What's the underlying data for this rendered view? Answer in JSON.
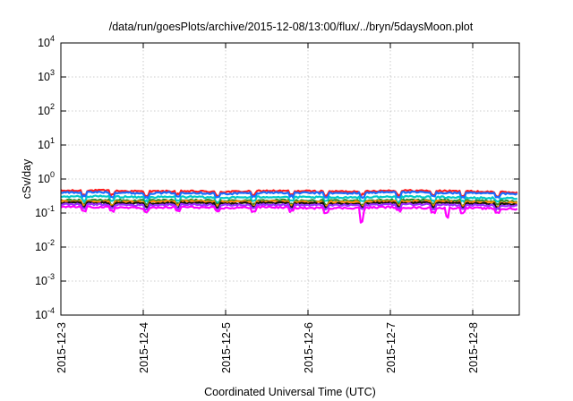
{
  "chart_data": {
    "type": "line",
    "title": "/data/run/goesPlots/archive/2015-12-08/13:00/flux/../bryn/5daysMoon.plot",
    "xlabel": "Coordinated Universal Time (UTC)",
    "ylabel": "cSv/day",
    "yscale": "log",
    "ylim": [
      0.0001,
      10000
    ],
    "xlim": [
      "2015-12-03",
      "2015-12-08 13:00"
    ],
    "y_ticks": [
      {
        "base": "10",
        "exp": "-4"
      },
      {
        "base": "10",
        "exp": "-3"
      },
      {
        "base": "10",
        "exp": "-2"
      },
      {
        "base": "10",
        "exp": "-1"
      },
      {
        "base": "10",
        "exp": "0"
      },
      {
        "base": "10",
        "exp": "1"
      },
      {
        "base": "10",
        "exp": "2"
      },
      {
        "base": "10",
        "exp": "3"
      },
      {
        "base": "10",
        "exp": "4"
      }
    ],
    "x_ticks": [
      "2015-12-3",
      "2015-12-4",
      "2015-12-5",
      "2015-12-6",
      "2015-12-7",
      "2015-12-8"
    ],
    "grid": true,
    "series_colors": [
      "#ff1a1a",
      "#1a6cff",
      "#00c8c8",
      "#2e8b2e",
      "#ff8c00",
      "#111111",
      "#9b30ff",
      "#ff00ff"
    ],
    "series": [
      {
        "color": "#ff1a1a",
        "x": [
          "12-3 00:00",
          "12-3 12:00",
          "12-4 00:00",
          "12-4 12:00",
          "12-5 00:00",
          "12-5 12:00",
          "12-6 00:00",
          "12-6 12:00",
          "12-7 00:00",
          "12-7 12:00",
          "12-8 00:00",
          "12-8 13:00"
        ],
        "values": [
          0.45,
          0.46,
          0.43,
          0.44,
          0.42,
          0.45,
          0.44,
          0.43,
          0.46,
          0.45,
          0.43,
          0.4
        ]
      },
      {
        "color": "#1a6cff",
        "x": [
          "12-3 00:00",
          "12-3 12:00",
          "12-4 00:00",
          "12-4 12:00",
          "12-5 00:00",
          "12-5 12:00",
          "12-6 00:00",
          "12-6 12:00",
          "12-7 00:00",
          "12-7 12:00",
          "12-8 00:00",
          "12-8 13:00"
        ],
        "values": [
          0.4,
          0.41,
          0.38,
          0.4,
          0.37,
          0.4,
          0.39,
          0.38,
          0.41,
          0.4,
          0.38,
          0.36
        ]
      },
      {
        "color": "#00c8c8",
        "x": [
          "12-3 00:00",
          "12-3 12:00",
          "12-4 00:00",
          "12-4 12:00",
          "12-5 00:00",
          "12-5 12:00",
          "12-6 00:00",
          "12-6 12:00",
          "12-7 00:00",
          "12-7 12:00",
          "12-8 00:00",
          "12-8 13:00"
        ],
        "values": [
          0.3,
          0.31,
          0.29,
          0.3,
          0.28,
          0.3,
          0.29,
          0.29,
          0.3,
          0.3,
          0.28,
          0.27
        ]
      },
      {
        "color": "#2e8b2e",
        "x": [
          "12-3 00:00",
          "12-3 12:00",
          "12-4 00:00",
          "12-4 12:00",
          "12-5 00:00",
          "12-5 12:00",
          "12-6 00:00",
          "12-6 12:00",
          "12-7 00:00",
          "12-7 12:00",
          "12-8 00:00",
          "12-8 13:00"
        ],
        "values": [
          0.24,
          0.24,
          0.23,
          0.24,
          0.23,
          0.24,
          0.23,
          0.23,
          0.24,
          0.24,
          0.23,
          0.22
        ]
      },
      {
        "color": "#ff8c00",
        "x": [
          "12-3 00:00",
          "12-3 12:00",
          "12-4 00:00",
          "12-4 12:00",
          "12-5 00:00",
          "12-5 12:00",
          "12-6 00:00",
          "12-6 12:00",
          "12-7 00:00",
          "12-7 12:00",
          "12-8 00:00",
          "12-8 13:00"
        ],
        "values": [
          0.22,
          0.22,
          0.21,
          0.22,
          0.21,
          0.22,
          0.21,
          0.21,
          0.22,
          0.22,
          0.21,
          0.2
        ]
      },
      {
        "color": "#111111",
        "x": [
          "12-3 00:00",
          "12-3 12:00",
          "12-4 00:00",
          "12-4 12:00",
          "12-5 00:00",
          "12-5 12:00",
          "12-6 00:00",
          "12-6 12:00",
          "12-7 00:00",
          "12-7 12:00",
          "12-8 00:00",
          "12-8 13:00"
        ],
        "values": [
          0.2,
          0.2,
          0.19,
          0.2,
          0.19,
          0.2,
          0.19,
          0.19,
          0.2,
          0.2,
          0.19,
          0.18
        ]
      },
      {
        "color": "#9b30ff",
        "x": [
          "12-3 00:00",
          "12-3 12:00",
          "12-4 00:00",
          "12-4 12:00",
          "12-5 00:00",
          "12-5 12:00",
          "12-6 00:00",
          "12-6 12:00",
          "12-7 00:00",
          "12-7 12:00",
          "12-8 00:00",
          "12-8 13:00"
        ],
        "values": [
          0.18,
          0.18,
          0.17,
          0.18,
          0.17,
          0.18,
          0.17,
          0.17,
          0.18,
          0.18,
          0.17,
          0.16
        ]
      },
      {
        "color": "#ff00ff",
        "x": [
          "12-3 00:00",
          "12-3 12:00",
          "12-4 00:00",
          "12-4 12:00",
          "12-5 00:00",
          "12-5 12:00",
          "12-6 00:00",
          "12-6 12:00",
          "12-7 00:00",
          "12-7 12:00",
          "12-8 00:00",
          "12-8 13:00"
        ],
        "values": [
          0.15,
          0.15,
          0.14,
          0.15,
          0.14,
          0.15,
          0.14,
          0.14,
          0.15,
          0.14,
          0.14,
          0.13
        ]
      }
    ]
  }
}
